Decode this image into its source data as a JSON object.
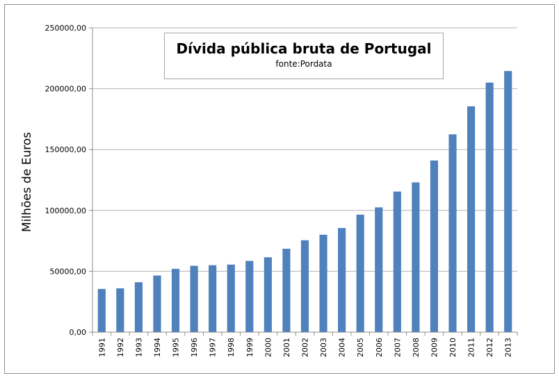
{
  "chart_data": {
    "type": "bar",
    "title": "Dívida pública bruta de Portugal",
    "subtitle": "fonte:Pordata",
    "xlabel": "",
    "ylabel": "Milhões de Euros",
    "ylim": [
      0,
      250000
    ],
    "yticks": [
      0,
      50000,
      100000,
      150000,
      200000,
      250000
    ],
    "ytick_labels": [
      "0,00",
      "50000,00",
      "100000,00",
      "150000,00",
      "200000,00",
      "250000,00"
    ],
    "grid": true,
    "legend": "none",
    "bar_color": "#4f81bd",
    "categories": [
      "1991",
      "1992",
      "1993",
      "1994",
      "1995",
      "1996",
      "1997",
      "1998",
      "1999",
      "2000",
      "2001",
      "2002",
      "2003",
      "2004",
      "2005",
      "2006",
      "2007",
      "2008",
      "2009",
      "2010",
      "2011",
      "2012",
      "2013"
    ],
    "values": [
      35500,
      36000,
      41000,
      46500,
      52000,
      54500,
      55000,
      55500,
      58500,
      61500,
      68500,
      75500,
      80000,
      85500,
      96500,
      102500,
      115500,
      123000,
      141000,
      162500,
      185500,
      205000,
      214500
    ]
  }
}
